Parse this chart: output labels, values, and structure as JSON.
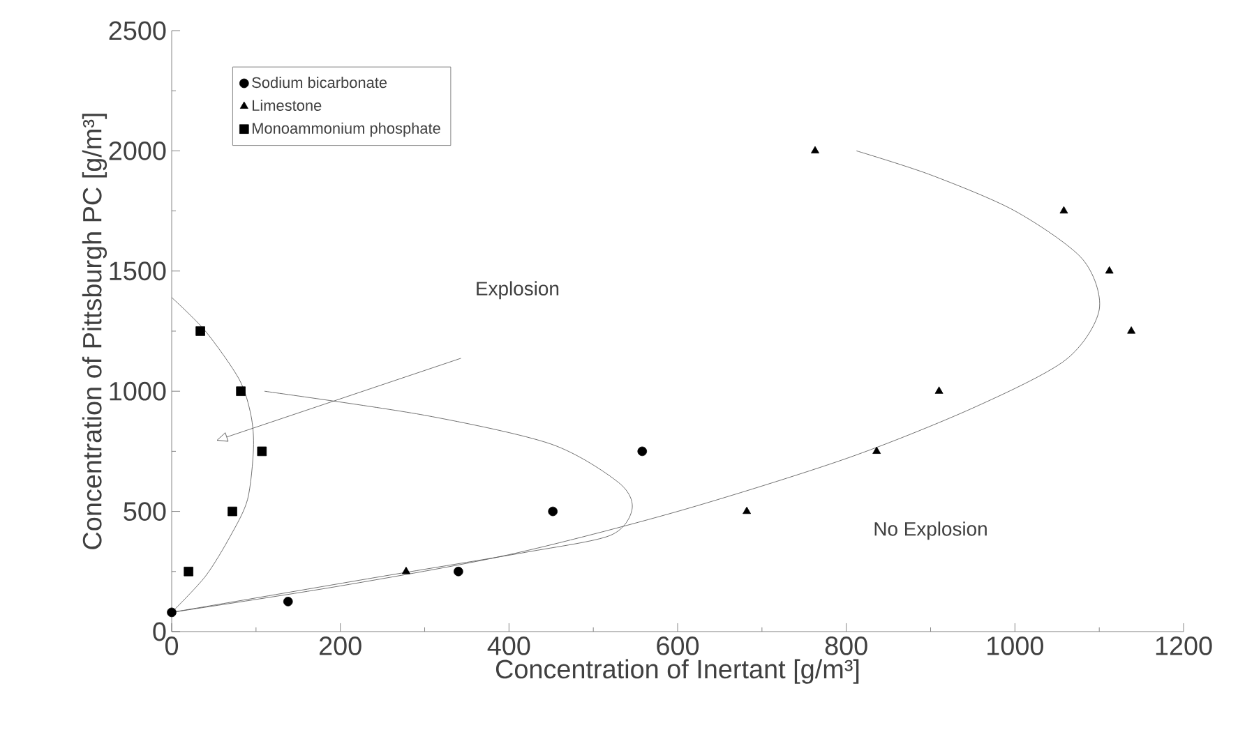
{
  "chart_data": {
    "type": "scatter",
    "xlabel": "Concentration of Inertant [g/m³]",
    "ylabel": "Concentration of Pittsburgh PC [g/m³]",
    "xlim": [
      0,
      1200
    ],
    "ylim": [
      0,
      2500
    ],
    "xticks": [
      0,
      200,
      400,
      600,
      800,
      1000,
      1200
    ],
    "yticks": [
      0,
      500,
      1000,
      1500,
      2000,
      2500
    ],
    "grid": false,
    "legend": "top left",
    "series": [
      {
        "name": "Sodium bicarbonate",
        "color": "#000000",
        "marker": "circle",
        "x": [
          0,
          138,
          340,
          452,
          558
        ],
        "values": [
          80,
          125,
          250,
          500,
          750
        ]
      },
      {
        "name": "Limestone",
        "color": "#000000",
        "marker": "triangle",
        "x": [
          278,
          682,
          836,
          910,
          763,
          1058,
          1112,
          1138
        ],
        "values": [
          250,
          500,
          750,
          1000,
          2000,
          1750,
          1500,
          1250
        ]
      },
      {
        "name": "Monoammonium phosphate",
        "color": "#000000",
        "marker": "square",
        "x": [
          20,
          72,
          107,
          82,
          34
        ],
        "values": [
          250,
          500,
          750,
          1000,
          1250
        ]
      },
      {
        "type": "line",
        "color": "#4c4c4c",
        "marker": "none",
        "x": [
          0,
          40,
          80,
          94,
          97,
          90,
          70,
          40,
          0
        ],
        "values": [
          1390,
          1250,
          1050,
          900,
          760,
          550,
          400,
          230,
          80
        ]
      },
      {
        "type": "line",
        "color": "#4c4c4c",
        "marker": "none",
        "x": [
          110,
          300,
          450,
          530,
          546,
          520,
          420,
          250,
          100,
          0
        ],
        "values": [
          1000,
          900,
          780,
          620,
          510,
          400,
          330,
          230,
          140,
          80
        ]
      },
      {
        "type": "line",
        "color": "#4c4c4c",
        "marker": "none",
        "x": [
          0,
          200,
          400,
          600,
          800,
          950,
          1060,
          1100,
          1080,
          1000,
          900,
          812
        ],
        "values": [
          80,
          190,
          320,
          500,
          720,
          930,
          1130,
          1340,
          1550,
          1750,
          1900,
          2000
        ]
      }
    ],
    "annotations": [
      "Explosion",
      "No Explosion"
    ]
  }
}
